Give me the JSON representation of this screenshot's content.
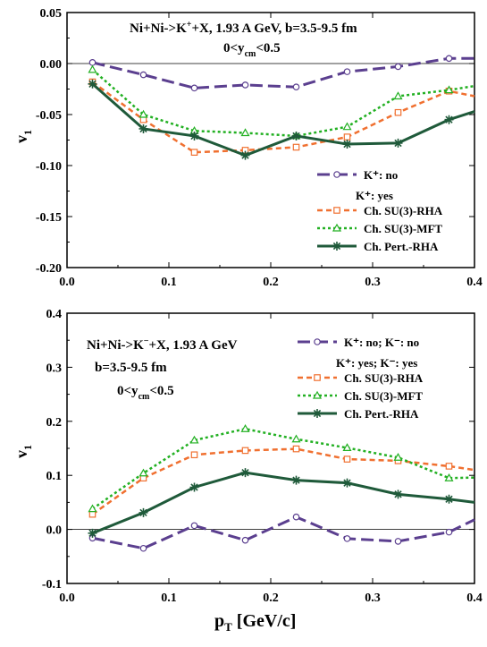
{
  "colors": {
    "no": "#5b3f8f",
    "rha": "#f07030",
    "mft": "#22b022",
    "pert": "#1f5a3a"
  },
  "chart_data": [
    {
      "type": "line",
      "title": "Ni+Ni->K",
      "title_sup": "+",
      "title_rest": "+X, 1.93 A GeV, b=3.5-9.5 fm",
      "cut_pre": "0<y",
      "cut_sub": "cm",
      "cut_post": "<0.5",
      "xlabel": "",
      "ylabel": "v",
      "ylabel_sub": "1",
      "xlim": [
        0.0,
        0.4
      ],
      "ylim": [
        -0.2,
        0.05
      ],
      "xticks": [
        "0.0",
        "0.1",
        "0.2",
        "0.3",
        "0.4"
      ],
      "yticks": [
        "0.05",
        "0.00",
        "-0.05",
        "-0.10",
        "-0.15",
        "-0.20"
      ],
      "legend_placement": "bottom-right",
      "legend_header": "K⁺: yes",
      "series": [
        {
          "name": "K⁺: no",
          "style": "no",
          "x": [
            0.025,
            0.075,
            0.125,
            0.175,
            0.225,
            0.275,
            0.325,
            0.375,
            0.4
          ],
          "values": [
            0.001,
            -0.011,
            -0.024,
            -0.021,
            -0.023,
            -0.008,
            -0.003,
            0.005,
            0.005
          ]
        },
        {
          "name": "Ch. SU(3)-RHA",
          "style": "rha",
          "x": [
            0.025,
            0.075,
            0.125,
            0.175,
            0.225,
            0.275,
            0.325,
            0.375,
            0.4
          ],
          "values": [
            -0.018,
            -0.055,
            -0.087,
            -0.085,
            -0.082,
            -0.072,
            -0.048,
            -0.027,
            -0.032
          ]
        },
        {
          "name": "Ch. SU(3)-MFT",
          "style": "mft",
          "x": [
            0.025,
            0.075,
            0.125,
            0.175,
            0.225,
            0.275,
            0.325,
            0.375,
            0.4
          ],
          "values": [
            -0.006,
            -0.05,
            -0.066,
            -0.068,
            -0.071,
            -0.062,
            -0.032,
            -0.026,
            -0.022
          ]
        },
        {
          "name": "Ch. Pert.-RHA",
          "style": "pert",
          "x": [
            0.025,
            0.075,
            0.125,
            0.175,
            0.225,
            0.275,
            0.325,
            0.375,
            0.4
          ],
          "values": [
            -0.02,
            -0.064,
            -0.071,
            -0.09,
            -0.071,
            -0.079,
            -0.078,
            -0.055,
            -0.047
          ]
        }
      ]
    },
    {
      "type": "line",
      "title": "Ni+Ni->K",
      "title_sup": "−",
      "title_rest": "+X, 1.93 A GeV",
      "line2": "b=3.5-9.5 fm",
      "cut_pre": "0<y",
      "cut_sub": "cm",
      "cut_post": "<0.5",
      "xlabel": "p",
      "xlabel_sub": "T",
      "xlabel_rest": " [GeV/c]",
      "ylabel": "v",
      "ylabel_sub": "1",
      "xlim": [
        0.0,
        0.4
      ],
      "ylim": [
        -0.1,
        0.4
      ],
      "xticks": [
        "0.0",
        "0.1",
        "0.2",
        "0.3",
        "0.4"
      ],
      "yticks": [
        "0.4",
        "0.3",
        "0.2",
        "0.1",
        "0.0",
        "-0.1"
      ],
      "legend_placement": "top-right",
      "legend_header": "K⁺: yes; K⁻: yes",
      "series": [
        {
          "name": "K⁺: no;  K⁻: no",
          "style": "no",
          "x": [
            0.025,
            0.075,
            0.125,
            0.175,
            0.225,
            0.275,
            0.325,
            0.375,
            0.4
          ],
          "values": [
            -0.016,
            -0.035,
            0.007,
            -0.02,
            0.023,
            -0.017,
            -0.022,
            -0.005,
            0.018
          ]
        },
        {
          "name": "Ch. SU(3)-RHA",
          "style": "rha",
          "x": [
            0.025,
            0.075,
            0.125,
            0.175,
            0.225,
            0.275,
            0.325,
            0.375,
            0.4
          ],
          "values": [
            0.028,
            0.095,
            0.138,
            0.146,
            0.149,
            0.13,
            0.127,
            0.117,
            0.11
          ]
        },
        {
          "name": "Ch. SU(3)-MFT",
          "style": "mft",
          "x": [
            0.025,
            0.075,
            0.125,
            0.175,
            0.225,
            0.275,
            0.325,
            0.375,
            0.4
          ],
          "values": [
            0.038,
            0.104,
            0.165,
            0.186,
            0.167,
            0.151,
            0.133,
            0.095,
            0.096
          ]
        },
        {
          "name": "Ch. Pert.-RHA",
          "style": "pert",
          "x": [
            0.025,
            0.075,
            0.125,
            0.175,
            0.225,
            0.275,
            0.325,
            0.375,
            0.4
          ],
          "values": [
            -0.007,
            0.031,
            0.078,
            0.105,
            0.091,
            0.086,
            0.065,
            0.056,
            0.05
          ]
        }
      ]
    }
  ]
}
